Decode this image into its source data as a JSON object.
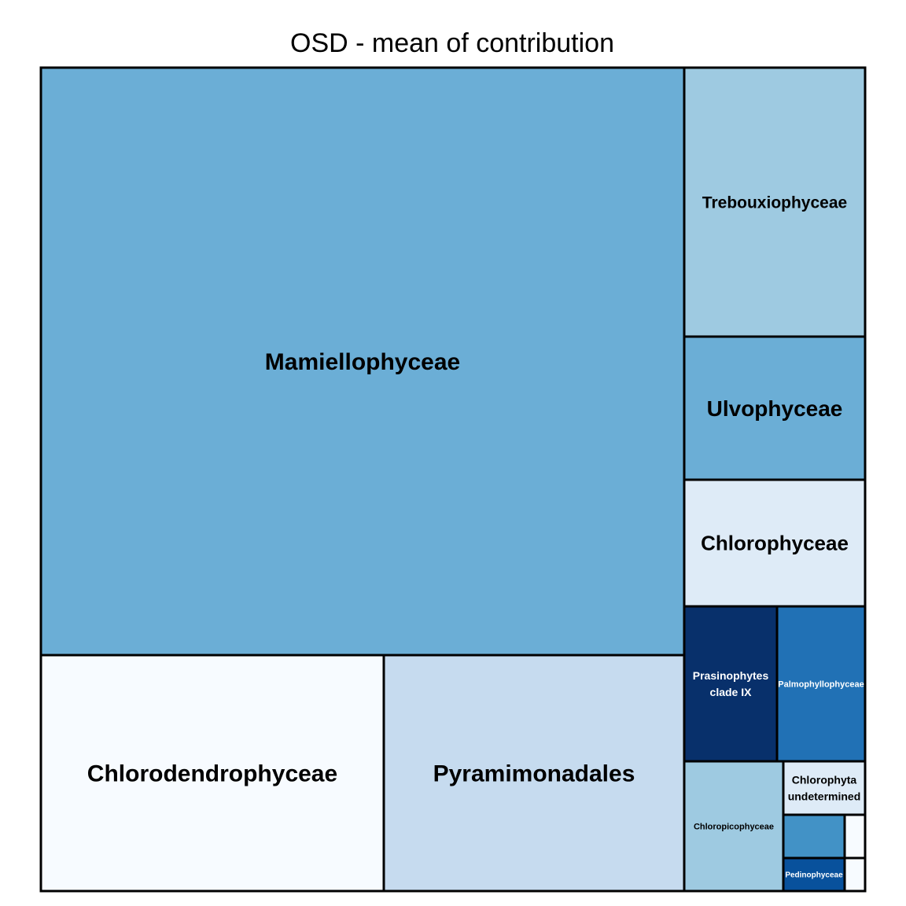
{
  "chart_data": {
    "type": "treemap",
    "title": "OSD - mean of contribution",
    "tiles": [
      {
        "label": "Mamiellophyceae",
        "color": "#6baed6",
        "text_color": "#000000"
      },
      {
        "label": "Chlorodendrophyceae",
        "color": "#f7fbff",
        "text_color": "#000000"
      },
      {
        "label": "Pyramimonadales",
        "color": "#c6dbef",
        "text_color": "#000000"
      },
      {
        "label": "Trebouxiophyceae",
        "color": "#9ecae1",
        "text_color": "#000000"
      },
      {
        "label": "Ulvophyceae",
        "color": "#6baed6",
        "text_color": "#000000"
      },
      {
        "label": "Chlorophyceae",
        "color": "#deebf7",
        "text_color": "#000000"
      },
      {
        "label": "Prasinophytes\nclade IX",
        "color": "#08306b",
        "text_color": "#ffffff"
      },
      {
        "label": "Palmophyllophyceae",
        "color": "#2171b5",
        "text_color": "#ffffff"
      },
      {
        "label": "Chloropicophyceae",
        "color": "#9ecae1",
        "text_color": "#000000"
      },
      {
        "label": "Chlorophyta\nundetermined",
        "color": "#deebf7",
        "text_color": "#000000"
      },
      {
        "label": "",
        "color": "#4292c6",
        "text_color": "#000000"
      },
      {
        "label": "",
        "color": "#f7fbff",
        "text_color": "#000000"
      },
      {
        "label": "Pedinophyceae",
        "color": "#08519c",
        "text_color": "#ffffff"
      },
      {
        "label": "",
        "color": "#f7fbff",
        "text_color": "#000000"
      }
    ]
  }
}
